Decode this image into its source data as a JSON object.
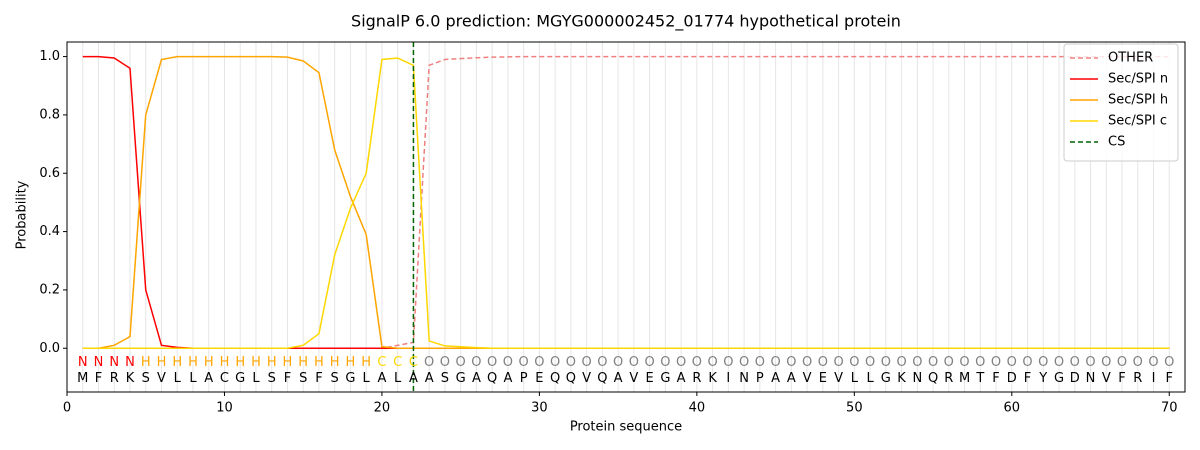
{
  "chart_data": {
    "type": "line",
    "title": "SignalP 6.0 prediction: MGYG000002452_01774 hypothetical protein",
    "x_label": "Protein sequence",
    "y_label": "Probability",
    "xlim": [
      0,
      71
    ],
    "ylim": [
      -0.15,
      1.05
    ],
    "xticks": [
      0,
      10,
      20,
      30,
      40,
      50,
      60,
      70
    ],
    "yticks": [
      {
        "value": 0,
        "label": "0.0"
      },
      0.2,
      0.4,
      0.6,
      0.8,
      {
        "value": 1,
        "label": "1.0"
      }
    ],
    "legend": "upper right",
    "x": [
      1,
      2,
      3,
      4,
      5,
      6,
      7,
      8,
      9,
      10,
      11,
      12,
      13,
      14,
      15,
      16,
      17,
      18,
      19,
      20,
      21,
      22,
      23,
      24,
      25,
      26,
      27,
      28,
      29,
      30,
      31,
      32,
      33,
      34,
      35,
      36,
      37,
      38,
      39,
      40,
      41,
      42,
      43,
      44,
      45,
      46,
      47,
      48,
      49,
      50,
      51,
      52,
      53,
      54,
      55,
      56,
      57,
      58,
      59,
      60,
      61,
      62,
      63,
      64,
      65,
      66,
      67,
      68,
      69,
      70
    ],
    "residues": [
      "M",
      "F",
      "R",
      "K",
      "S",
      "V",
      "L",
      "L",
      "A",
      "C",
      "G",
      "L",
      "S",
      "F",
      "S",
      "F",
      "S",
      "G",
      "L",
      "A",
      "L",
      "A",
      "A",
      "S",
      "G",
      "A",
      "Q",
      "A",
      "P",
      "E",
      "Q",
      "Q",
      "V",
      "Q",
      "A",
      "V",
      "E",
      "G",
      "A",
      "R",
      "K",
      "I",
      "N",
      "P",
      "A",
      "A",
      "V",
      "E",
      "V",
      "L",
      "L",
      "G",
      "K",
      "N",
      "Q",
      "R",
      "M",
      "T",
      "F",
      "D",
      "F",
      "Y",
      "G",
      "D",
      "N",
      "V",
      "F",
      "R",
      "I",
      "F"
    ],
    "labels": [
      "N",
      "N",
      "N",
      "N",
      "H",
      "H",
      "H",
      "H",
      "H",
      "H",
      "H",
      "H",
      "H",
      "H",
      "H",
      "H",
      "H",
      "H",
      "H",
      "C",
      "C",
      "C",
      "O",
      "O",
      "O",
      "O",
      "O",
      "O",
      "O",
      "O",
      "O",
      "O",
      "O",
      "O",
      "O",
      "O",
      "O",
      "O",
      "O",
      "O",
      "O",
      "O",
      "O",
      "O",
      "O",
      "O",
      "O",
      "O",
      "O",
      "O",
      "O",
      "O",
      "O",
      "O",
      "O",
      "O",
      "O",
      "O",
      "O",
      "O",
      "O",
      "O",
      "O",
      "O",
      "O",
      "O",
      "O",
      "O",
      "O",
      "O"
    ],
    "label_colors": {
      "N": "#ff0000",
      "H": "#ffa500",
      "C": "#ffd700",
      "O": "#808080"
    },
    "series": [
      {
        "name": "OTHER",
        "color": "#f08080",
        "dash": true,
        "values": [
          0,
          0,
          0,
          0,
          0,
          0,
          0,
          0,
          0,
          0,
          0,
          0,
          0,
          0,
          0,
          0,
          0,
          0,
          0,
          0,
          0.01,
          0.02,
          0.97,
          0.99,
          0.993,
          0.996,
          0.998,
          0.999,
          1,
          1,
          1,
          1,
          1,
          1,
          1,
          1,
          1,
          1,
          1,
          1,
          1,
          1,
          1,
          1,
          1,
          1,
          1,
          1,
          1,
          1,
          1,
          1,
          1,
          1,
          1,
          1,
          1,
          1,
          1,
          1,
          1,
          1,
          1,
          1,
          1,
          1,
          1,
          1,
          1,
          1
        ]
      },
      {
        "name": "Sec/SPI n",
        "color": "#ff0000",
        "values": [
          1,
          1,
          0.995,
          0.96,
          0.2,
          0.01,
          0.003,
          0,
          0,
          0,
          0,
          0,
          0,
          0,
          0,
          0,
          0,
          0,
          0,
          0,
          0,
          0,
          0,
          0,
          0,
          0,
          0,
          0,
          0,
          0,
          0,
          0,
          0,
          0,
          0,
          0,
          0,
          0,
          0,
          0,
          0,
          0,
          0,
          0,
          0,
          0,
          0,
          0,
          0,
          0,
          0,
          0,
          0,
          0,
          0,
          0,
          0,
          0,
          0,
          0,
          0,
          0,
          0,
          0,
          0,
          0,
          0,
          0,
          0,
          0
        ]
      },
      {
        "name": "Sec/SPI h",
        "color": "#ffa500",
        "values": [
          0,
          0,
          0.01,
          0.04,
          0.8,
          0.99,
          1,
          1,
          1,
          1,
          1,
          1,
          1,
          0.998,
          0.985,
          0.945,
          0.68,
          0.52,
          0.39,
          0.005,
          0,
          0,
          0,
          0,
          0,
          0,
          0,
          0,
          0,
          0,
          0,
          0,
          0,
          0,
          0,
          0,
          0,
          0,
          0,
          0,
          0,
          0,
          0,
          0,
          0,
          0,
          0,
          0,
          0,
          0,
          0,
          0,
          0,
          0,
          0,
          0,
          0,
          0,
          0,
          0,
          0,
          0,
          0,
          0,
          0,
          0,
          0,
          0,
          0,
          0
        ]
      },
      {
        "name": "Sec/SPI c",
        "color": "#ffd700",
        "values": [
          0,
          0,
          0,
          0,
          0,
          0,
          0,
          0,
          0,
          0,
          0,
          0,
          0,
          0,
          0.01,
          0.05,
          0.32,
          0.48,
          0.6,
          0.99,
          0.995,
          0.97,
          0.025,
          0.008,
          0.005,
          0.002,
          0,
          0,
          0,
          0,
          0,
          0,
          0,
          0,
          0,
          0,
          0,
          0,
          0,
          0,
          0,
          0,
          0,
          0,
          0,
          0,
          0,
          0,
          0,
          0,
          0,
          0,
          0,
          0,
          0,
          0,
          0,
          0,
          0,
          0,
          0,
          0,
          0,
          0,
          0,
          0,
          0,
          0,
          0,
          0
        ]
      }
    ],
    "cs": {
      "name": "CS",
      "x": 22,
      "color": "#006400"
    }
  }
}
